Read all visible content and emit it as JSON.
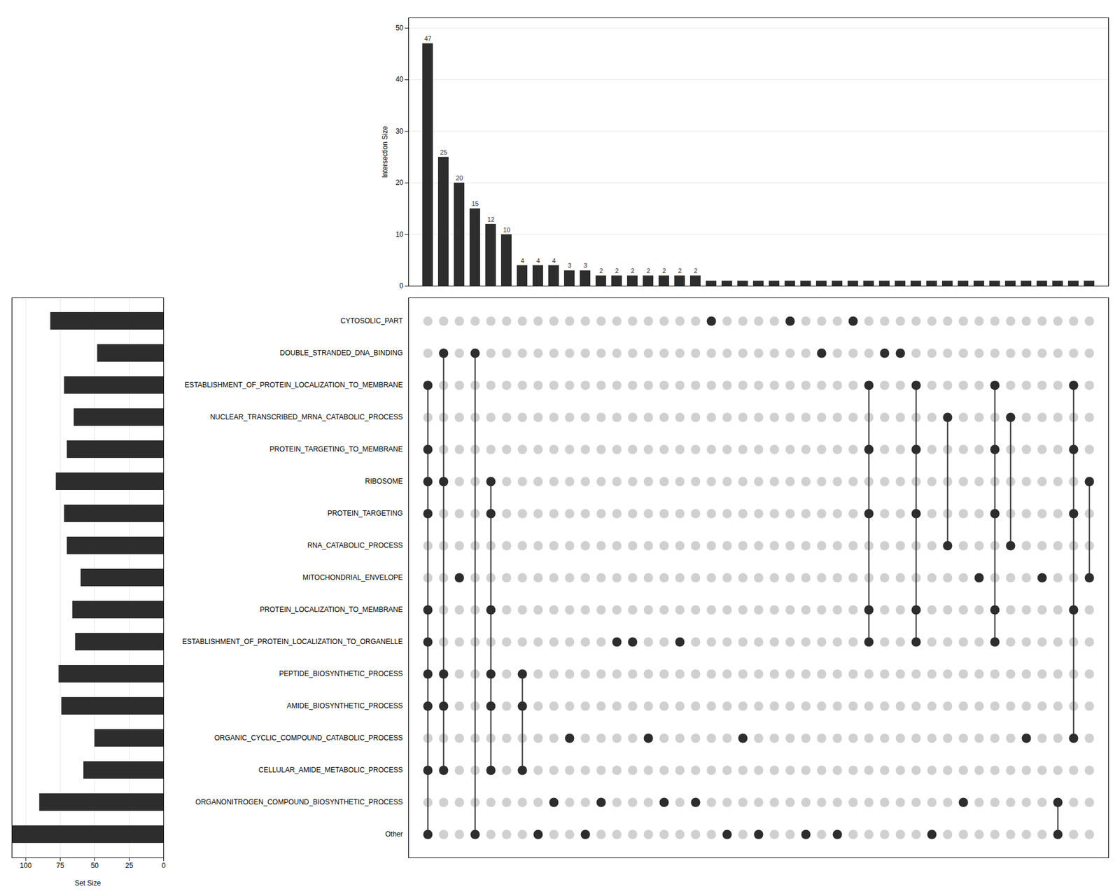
{
  "chart_data": [
    {
      "type": "bar",
      "values": [
        47,
        25,
        20,
        15,
        12,
        10,
        4,
        4,
        4,
        3,
        3,
        2,
        2,
        2,
        2,
        2,
        2,
        2,
        1,
        1,
        1,
        1,
        1,
        1,
        1,
        1,
        1,
        1,
        1,
        1,
        1,
        1,
        1,
        1,
        1,
        1,
        1,
        1,
        1,
        1,
        1,
        1,
        1
      ],
      "value_labels": [
        "47",
        "25",
        "20",
        "15",
        "12",
        "10",
        "4",
        "4",
        "4",
        "3",
        "3",
        "2",
        "2",
        "2",
        "2",
        "2",
        "2",
        "2",
        null,
        null,
        null,
        null,
        null,
        null,
        null,
        null,
        null,
        null,
        null,
        null,
        null,
        null,
        null,
        null,
        null,
        null,
        null,
        null,
        null,
        null,
        null,
        null,
        null
      ],
      "data_labels": true,
      "color": "#2d2d2d",
      "ylabel": "Intersection Size",
      "ylim": [
        0,
        52
      ],
      "yticks": [
        0,
        10,
        20,
        30,
        40,
        50
      ],
      "grid": true,
      "tick_labels": "y"
    },
    {
      "type": "dot_matrix",
      "categories": [
        "CYTOSOLIC_PART",
        "DOUBLE_STRANDED_DNA_BINDING",
        "ESTABLISHMENT_OF_PROTEIN_LOCALIZATION_TO_MEMBRANE",
        "NUCLEAR_TRANSCRIBED_MRNA_CATABOLIC_PROCESS",
        "PROTEIN_TARGETING_TO_MEMBRANE",
        "RIBOSOME",
        "PROTEIN_TARGETING",
        "RNA_CATABOLIC_PROCESS",
        "MITOCHONDRIAL_ENVELOPE",
        "PROTEIN_LOCALIZATION_TO_MEMBRANE",
        "ESTABLISHMENT_OF_PROTEIN_LOCALIZATION_TO_ORGANELLE",
        "PEPTIDE_BIOSYNTHETIC_PROCESS",
        "AMIDE_BIOSYNTHETIC_PROCESS",
        "ORGANIC_CYCLIC_COMPOUND_CATABOLIC_PROCESS",
        "CELLULAR_AMIDE_METABOLIC_PROCESS",
        "ORGANONITROGEN_COMPOUND_BIOSYNTHETIC_PROCESS",
        "Other"
      ],
      "cells": [
        [
          0,
          0,
          0,
          0,
          0,
          0,
          0,
          0,
          0,
          0,
          0,
          0,
          0,
          0,
          0,
          0,
          0,
          0,
          1,
          0,
          0,
          0,
          0,
          1,
          0,
          0,
          0,
          1,
          0,
          0,
          0,
          0,
          0,
          0,
          0,
          0,
          0,
          0,
          0,
          0,
          0,
          0,
          0
        ],
        [
          0,
          1,
          0,
          1,
          0,
          0,
          0,
          0,
          0,
          0,
          0,
          0,
          0,
          0,
          0,
          0,
          0,
          0,
          0,
          0,
          0,
          0,
          0,
          0,
          0,
          1,
          0,
          0,
          0,
          1,
          1,
          0,
          0,
          0,
          0,
          0,
          0,
          0,
          0,
          0,
          0,
          0,
          0
        ],
        [
          1,
          0,
          0,
          0,
          0,
          0,
          0,
          0,
          0,
          0,
          0,
          0,
          0,
          0,
          0,
          0,
          0,
          0,
          0,
          0,
          0,
          0,
          0,
          0,
          0,
          0,
          0,
          0,
          1,
          0,
          0,
          1,
          0,
          0,
          0,
          0,
          1,
          0,
          0,
          0,
          0,
          1,
          0
        ],
        [
          0,
          0,
          0,
          0,
          0,
          0,
          0,
          0,
          0,
          0,
          0,
          0,
          0,
          0,
          0,
          0,
          0,
          0,
          0,
          0,
          0,
          0,
          0,
          0,
          0,
          0,
          0,
          0,
          0,
          0,
          0,
          0,
          0,
          1,
          0,
          0,
          0,
          1,
          0,
          0,
          0,
          0,
          0
        ],
        [
          1,
          0,
          0,
          0,
          0,
          0,
          0,
          0,
          0,
          0,
          0,
          0,
          0,
          0,
          0,
          0,
          0,
          0,
          0,
          0,
          0,
          0,
          0,
          0,
          0,
          0,
          0,
          0,
          1,
          0,
          0,
          1,
          0,
          0,
          0,
          0,
          1,
          0,
          0,
          0,
          0,
          1,
          0
        ],
        [
          1,
          1,
          0,
          0,
          1,
          0,
          0,
          0,
          0,
          0,
          0,
          0,
          0,
          0,
          0,
          0,
          0,
          0,
          0,
          0,
          0,
          0,
          0,
          0,
          0,
          0,
          0,
          0,
          0,
          0,
          0,
          0,
          0,
          0,
          0,
          0,
          0,
          0,
          0,
          0,
          0,
          0,
          1
        ],
        [
          1,
          0,
          0,
          0,
          1,
          0,
          0,
          0,
          0,
          0,
          0,
          0,
          0,
          0,
          0,
          0,
          0,
          0,
          0,
          0,
          0,
          0,
          0,
          0,
          0,
          0,
          0,
          0,
          1,
          0,
          0,
          1,
          0,
          0,
          0,
          0,
          1,
          0,
          0,
          0,
          0,
          1,
          0
        ],
        [
          0,
          0,
          0,
          0,
          0,
          0,
          0,
          0,
          0,
          0,
          0,
          0,
          0,
          0,
          0,
          0,
          0,
          0,
          0,
          0,
          0,
          0,
          0,
          0,
          0,
          0,
          0,
          0,
          0,
          0,
          0,
          0,
          0,
          1,
          0,
          0,
          0,
          1,
          0,
          0,
          0,
          0,
          0
        ],
        [
          0,
          0,
          1,
          0,
          0,
          0,
          0,
          0,
          0,
          0,
          0,
          0,
          0,
          0,
          0,
          0,
          0,
          0,
          0,
          0,
          0,
          0,
          0,
          0,
          0,
          0,
          0,
          0,
          0,
          0,
          0,
          0,
          0,
          0,
          0,
          1,
          0,
          0,
          0,
          1,
          0,
          0,
          1
        ],
        [
          1,
          0,
          0,
          0,
          1,
          0,
          0,
          0,
          0,
          0,
          0,
          0,
          0,
          0,
          0,
          0,
          0,
          0,
          0,
          0,
          0,
          0,
          0,
          0,
          0,
          0,
          0,
          0,
          1,
          0,
          0,
          1,
          0,
          0,
          0,
          0,
          1,
          0,
          0,
          0,
          0,
          1,
          0
        ],
        [
          1,
          0,
          0,
          0,
          0,
          0,
          0,
          0,
          0,
          0,
          0,
          0,
          1,
          1,
          0,
          0,
          1,
          0,
          0,
          0,
          0,
          0,
          0,
          0,
          0,
          0,
          0,
          0,
          1,
          0,
          0,
          1,
          0,
          0,
          0,
          0,
          1,
          0,
          0,
          0,
          0,
          0,
          0
        ],
        [
          1,
          1,
          0,
          0,
          1,
          0,
          1,
          0,
          0,
          0,
          0,
          0,
          0,
          0,
          0,
          0,
          0,
          0,
          0,
          0,
          0,
          0,
          0,
          0,
          0,
          0,
          0,
          0,
          0,
          0,
          0,
          0,
          0,
          0,
          0,
          0,
          0,
          0,
          0,
          0,
          0,
          0,
          0
        ],
        [
          1,
          1,
          0,
          0,
          1,
          0,
          1,
          0,
          0,
          0,
          0,
          0,
          0,
          0,
          0,
          0,
          0,
          0,
          0,
          0,
          0,
          0,
          0,
          0,
          0,
          0,
          0,
          0,
          0,
          0,
          0,
          0,
          0,
          0,
          0,
          0,
          0,
          0,
          0,
          0,
          0,
          0,
          0
        ],
        [
          0,
          0,
          0,
          0,
          0,
          0,
          0,
          0,
          0,
          1,
          0,
          0,
          0,
          0,
          1,
          0,
          0,
          0,
          0,
          0,
          1,
          0,
          0,
          0,
          0,
          0,
          0,
          0,
          0,
          0,
          0,
          0,
          0,
          0,
          0,
          0,
          0,
          0,
          1,
          0,
          0,
          1,
          0
        ],
        [
          1,
          1,
          0,
          0,
          1,
          0,
          1,
          0,
          0,
          0,
          0,
          0,
          0,
          0,
          0,
          0,
          0,
          0,
          0,
          0,
          0,
          0,
          0,
          0,
          0,
          0,
          0,
          0,
          0,
          0,
          0,
          0,
          0,
          0,
          0,
          0,
          0,
          0,
          0,
          0,
          0,
          0,
          0
        ],
        [
          0,
          0,
          0,
          0,
          0,
          0,
          0,
          0,
          1,
          0,
          0,
          1,
          0,
          0,
          0,
          1,
          0,
          1,
          0,
          0,
          0,
          0,
          0,
          0,
          0,
          0,
          0,
          0,
          0,
          0,
          0,
          0,
          0,
          0,
          1,
          0,
          0,
          0,
          0,
          0,
          1,
          0,
          0
        ],
        [
          1,
          0,
          0,
          1,
          0,
          0,
          0,
          1,
          0,
          0,
          1,
          0,
          0,
          0,
          0,
          0,
          0,
          0,
          0,
          1,
          0,
          1,
          0,
          0,
          1,
          0,
          1,
          0,
          0,
          0,
          0,
          0,
          1,
          0,
          0,
          0,
          0,
          0,
          0,
          0,
          1,
          0,
          0
        ]
      ],
      "colors": [
        "#d0d0d0",
        "#2d2d2d"
      ],
      "tick_labels": "y"
    },
    {
      "type": "bar",
      "orientation": "horizontal",
      "categories": [
        "CYTOSOLIC_PART",
        "DOUBLE_STRANDED_DNA_BINDING",
        "ESTABLISHMENT_OF_PROTEIN_LOCALIZATION_TO_MEMBRANE",
        "NUCLEAR_TRANSCRIBED_MRNA_CATABOLIC_PROCESS",
        "PROTEIN_TARGETING_TO_MEMBRANE",
        "RIBOSOME",
        "PROTEIN_TARGETING",
        "RNA_CATABOLIC_PROCESS",
        "MITOCHONDRIAL_ENVELOPE",
        "PROTEIN_LOCALIZATION_TO_MEMBRANE",
        "ESTABLISHMENT_OF_PROTEIN_LOCALIZATION_TO_ORGANELLE",
        "PEPTIDE_BIOSYNTHETIC_PROCESS",
        "AMIDE_BIOSYNTHETIC_PROCESS",
        "ORGANIC_CYCLIC_COMPOUND_CATABOLIC_PROCESS",
        "CELLULAR_AMIDE_METABOLIC_PROCESS",
        "ORGANONITROGEN_COMPOUND_BIOSYNTHETIC_PROCESS",
        "Other"
      ],
      "values": [
        82,
        48,
        72,
        65,
        70,
        78,
        72,
        70,
        60,
        66,
        64,
        76,
        74,
        50,
        58,
        90,
        110
      ],
      "color": "#2d2d2d",
      "xlabel": "Set Size",
      "xlim": [
        110,
        0
      ],
      "xticks": [
        100,
        75,
        50,
        25,
        0
      ],
      "grid": true,
      "tick_labels": "x"
    }
  ]
}
